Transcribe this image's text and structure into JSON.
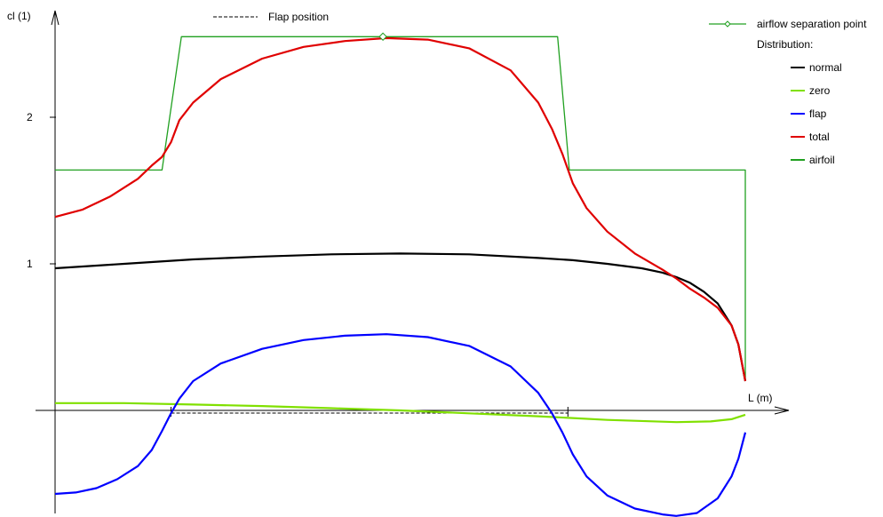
{
  "chart_data": {
    "type": "line",
    "xlabel": "L (m)",
    "ylabel": "cl (1)",
    "y_ticks": [
      {
        "value": 1,
        "label": "1"
      },
      {
        "value": 2,
        "label": "2"
      }
    ],
    "legend": {
      "placement": "top-right",
      "separation_label": "airflow separation point",
      "distribution_title": "Distribution:",
      "flap_position_label": "Flap position"
    },
    "separation_point": {
      "x": 0.475,
      "y": 2.55
    },
    "flap_range": [
      0.168,
      0.743
    ],
    "series": [
      {
        "name": "normal",
        "color": "#000000",
        "x": [
          0.0,
          0.1,
          0.2,
          0.3,
          0.4,
          0.5,
          0.6,
          0.7,
          0.75,
          0.8,
          0.85,
          0.88,
          0.9,
          0.92,
          0.94,
          0.96,
          0.98,
          0.99,
          1.0
        ],
        "y": [
          0.97,
          1.0,
          1.03,
          1.05,
          1.065,
          1.07,
          1.065,
          1.04,
          1.025,
          1.0,
          0.97,
          0.94,
          0.91,
          0.87,
          0.81,
          0.73,
          0.58,
          0.45,
          0.2
        ]
      },
      {
        "name": "zero",
        "color": "#80e000",
        "x": [
          0.0,
          0.1,
          0.2,
          0.3,
          0.4,
          0.5,
          0.6,
          0.7,
          0.8,
          0.9,
          0.95,
          0.98,
          1.0
        ],
        "y": [
          0.05,
          0.05,
          0.04,
          0.03,
          0.015,
          0.0,
          -0.02,
          -0.04,
          -0.065,
          -0.08,
          -0.075,
          -0.06,
          -0.03
        ]
      },
      {
        "name": "flap",
        "color": "#0000ff",
        "x": [
          0.0,
          0.03,
          0.06,
          0.09,
          0.12,
          0.14,
          0.155,
          0.168,
          0.18,
          0.2,
          0.24,
          0.3,
          0.36,
          0.42,
          0.48,
          0.54,
          0.6,
          0.66,
          0.7,
          0.72,
          0.735,
          0.75,
          0.77,
          0.8,
          0.84,
          0.88,
          0.9,
          0.93,
          0.96,
          0.98,
          0.99,
          1.0
        ],
        "y": [
          -0.57,
          -0.56,
          -0.53,
          -0.47,
          -0.38,
          -0.27,
          -0.14,
          -0.02,
          0.08,
          0.2,
          0.32,
          0.42,
          0.48,
          0.51,
          0.52,
          0.5,
          0.44,
          0.3,
          0.12,
          -0.02,
          -0.15,
          -0.3,
          -0.45,
          -0.58,
          -0.67,
          -0.71,
          -0.72,
          -0.7,
          -0.6,
          -0.45,
          -0.33,
          -0.15
        ]
      },
      {
        "name": "total",
        "color": "#e00000",
        "x": [
          0.0,
          0.04,
          0.08,
          0.12,
          0.14,
          0.155,
          0.168,
          0.18,
          0.2,
          0.24,
          0.3,
          0.36,
          0.42,
          0.48,
          0.54,
          0.6,
          0.66,
          0.7,
          0.72,
          0.735,
          0.75,
          0.77,
          0.8,
          0.84,
          0.88,
          0.9,
          0.92,
          0.94,
          0.96,
          0.98,
          0.99,
          1.0
        ],
        "y": [
          1.32,
          1.37,
          1.46,
          1.58,
          1.67,
          1.73,
          1.83,
          1.98,
          2.1,
          2.26,
          2.4,
          2.48,
          2.52,
          2.54,
          2.53,
          2.47,
          2.32,
          2.1,
          1.92,
          1.75,
          1.55,
          1.38,
          1.22,
          1.07,
          0.96,
          0.9,
          0.83,
          0.77,
          0.7,
          0.58,
          0.45,
          0.2
        ]
      },
      {
        "name": "airfoil",
        "color": "#20a020",
        "x": [
          0.0,
          0.155,
          0.183,
          0.728,
          0.745,
          1.0,
          1.0
        ],
        "y": [
          1.64,
          1.64,
          2.55,
          2.55,
          1.64,
          1.64,
          0.2
        ]
      }
    ]
  }
}
